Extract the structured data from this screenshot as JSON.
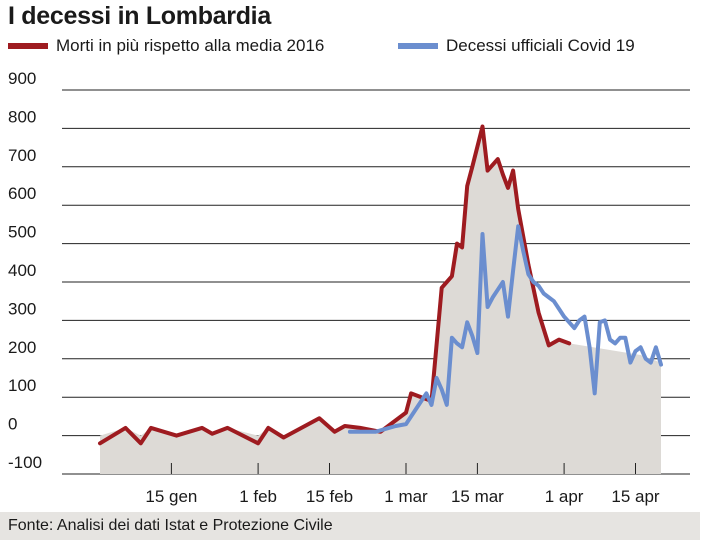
{
  "title": "I decessi in Lombardia",
  "source": "Fonte: Analisi dei dati Istat e Protezione Civile",
  "chart_data": {
    "type": "line",
    "title": "I decessi in Lombardia",
    "xlabel": "",
    "ylabel": "",
    "ylim": [
      -100,
      900
    ],
    "yticks": [
      -100,
      0,
      100,
      200,
      300,
      400,
      500,
      600,
      700,
      800,
      900
    ],
    "ytick_labels": [
      "-100",
      "0",
      "100",
      "200",
      "300",
      "400",
      "500",
      "600",
      "700",
      "800",
      "900"
    ],
    "xlim": [
      "2020-01-01",
      "2020-04-21"
    ],
    "xticks": [
      "2020-01-15",
      "2020-02-01",
      "2020-02-15",
      "2020-03-01",
      "2020-03-15",
      "2020-04-01",
      "2020-04-15"
    ],
    "xtick_labels": [
      "15 gen",
      "1 feb",
      "15 feb",
      "1 mar",
      "15 mar",
      "1 apr",
      "15 apr"
    ],
    "grid": true,
    "legend": "top",
    "series": [
      {
        "name": "Morti in più rispetto alla media 2016",
        "color": "#9e1b20",
        "shaded_area": true,
        "area_color": "#dddad6",
        "x": [
          "2020-01-01",
          "2020-01-06",
          "2020-01-09",
          "2020-01-11",
          "2020-01-16",
          "2020-01-21",
          "2020-01-23",
          "2020-01-26",
          "2020-02-01",
          "2020-02-03",
          "2020-02-06",
          "2020-02-13",
          "2020-02-16",
          "2020-02-18",
          "2020-02-21",
          "2020-02-25",
          "2020-03-01",
          "2020-03-02",
          "2020-03-04",
          "2020-03-06",
          "2020-03-08",
          "2020-03-10",
          "2020-03-11",
          "2020-03-12",
          "2020-03-13",
          "2020-03-14",
          "2020-03-16",
          "2020-03-17",
          "2020-03-19",
          "2020-03-20",
          "2020-03-21",
          "2020-03-22",
          "2020-03-23",
          "2020-03-25",
          "2020-03-27",
          "2020-03-29",
          "2020-03-31",
          "2020-04-02"
        ],
        "y": [
          -20,
          20,
          -20,
          20,
          0,
          20,
          5,
          20,
          -20,
          20,
          -5,
          45,
          10,
          25,
          20,
          10,
          60,
          110,
          100,
          90,
          385,
          415,
          500,
          490,
          650,
          700,
          805,
          690,
          720,
          680,
          645,
          690,
          590,
          445,
          320,
          235,
          250,
          240
        ]
      },
      {
        "name": "Decessi ufficiali Covid 19",
        "color": "#6b8ecf",
        "shaded_area": false,
        "x": [
          "2020-02-19",
          "2020-02-24",
          "2020-02-28",
          "2020-03-01",
          "2020-03-04",
          "2020-03-05",
          "2020-03-06",
          "2020-03-07",
          "2020-03-08",
          "2020-03-09",
          "2020-03-10",
          "2020-03-11",
          "2020-03-12",
          "2020-03-13",
          "2020-03-14",
          "2020-03-15",
          "2020-03-16",
          "2020-03-17",
          "2020-03-18",
          "2020-03-19",
          "2020-03-20",
          "2020-03-21",
          "2020-03-22",
          "2020-03-23",
          "2020-03-24",
          "2020-03-25",
          "2020-03-26",
          "2020-03-27",
          "2020-03-28",
          "2020-03-29",
          "2020-03-30",
          "2020-03-31",
          "2020-04-01",
          "2020-04-02",
          "2020-04-03",
          "2020-04-04",
          "2020-04-05",
          "2020-04-06",
          "2020-04-07",
          "2020-04-08",
          "2020-04-09",
          "2020-04-10",
          "2020-04-11",
          "2020-04-12",
          "2020-04-13",
          "2020-04-14",
          "2020-04-15",
          "2020-04-16",
          "2020-04-17",
          "2020-04-18",
          "2020-04-19",
          "2020-04-20"
        ],
        "y": [
          10,
          10,
          25,
          30,
          90,
          110,
          80,
          150,
          120,
          80,
          255,
          240,
          230,
          295,
          260,
          215,
          525,
          335,
          360,
          380,
          400,
          310,
          430,
          545,
          480,
          420,
          400,
          390,
          370,
          360,
          350,
          330,
          310,
          295,
          280,
          300,
          310,
          230,
          110,
          295,
          300,
          250,
          240,
          255,
          255,
          190,
          220,
          230,
          200,
          190,
          230,
          185
        ]
      }
    ]
  }
}
